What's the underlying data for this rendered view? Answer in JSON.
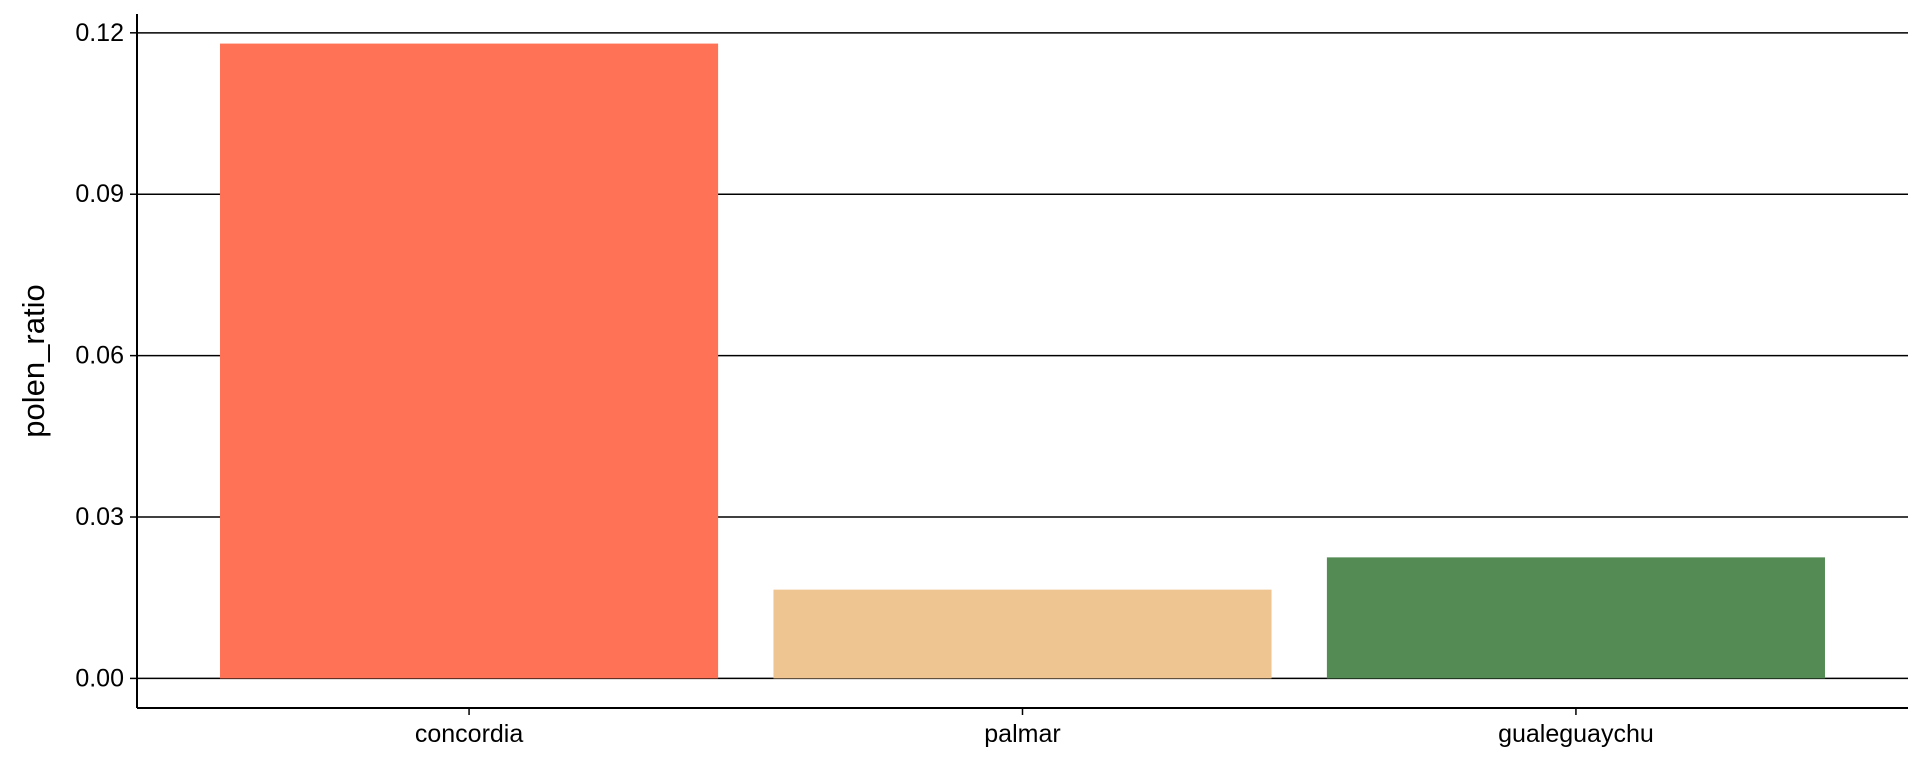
{
  "chart_data": {
    "type": "bar",
    "title": "",
    "xlabel": "",
    "ylabel": "polen_ratio",
    "categories": [
      "concordia",
      "palmar",
      "gualeguaychu"
    ],
    "values": [
      0.118,
      0.0165,
      0.0225
    ],
    "colors": [
      "#FF7256",
      "#EEC591",
      "#548B54"
    ],
    "ylim": [
      -0.0055,
      0.1235
    ],
    "yticks": [
      0.0,
      0.03,
      0.06,
      0.09,
      0.12
    ],
    "ytick_labels": [
      "0.00",
      "0.03",
      "0.06",
      "0.09",
      "0.12"
    ],
    "grid": "horizontal major",
    "legend": "none"
  }
}
